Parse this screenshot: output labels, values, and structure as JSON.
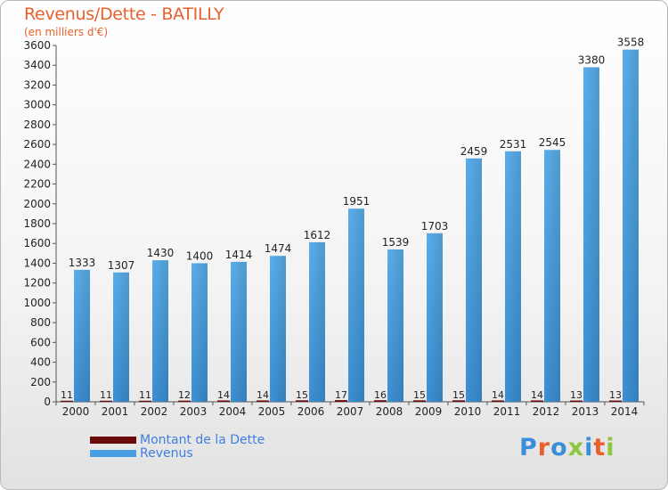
{
  "title": "Revenus/Dette - BATILLY",
  "subtitle": "(en milliers d'€)",
  "colors": {
    "revenus": "#4a9fe2",
    "dette": "#6b0a0a",
    "title": "#e8602c",
    "legend_text": "#3f7fdc"
  },
  "logo": {
    "text": "Proxiti"
  },
  "chart_data": {
    "type": "bar",
    "categories": [
      "2000",
      "2001",
      "2002",
      "2003",
      "2004",
      "2005",
      "2006",
      "2007",
      "2008",
      "2009",
      "2010",
      "2011",
      "2012",
      "2013",
      "2014"
    ],
    "series": [
      {
        "name": "Montant de la Dette",
        "values": [
          11,
          11,
          11,
          12,
          14,
          14,
          15,
          17,
          16,
          15,
          15,
          14,
          14,
          13,
          13
        ]
      },
      {
        "name": "Revenus",
        "values": [
          1333,
          1307,
          1430,
          1400,
          1414,
          1474,
          1612,
          1951,
          1539,
          1703,
          2459,
          2531,
          2545,
          3380,
          3558
        ]
      }
    ],
    "ylim": [
      0,
      3600
    ],
    "ytick_step": 200,
    "grid": false,
    "legend": "bottom-left"
  }
}
